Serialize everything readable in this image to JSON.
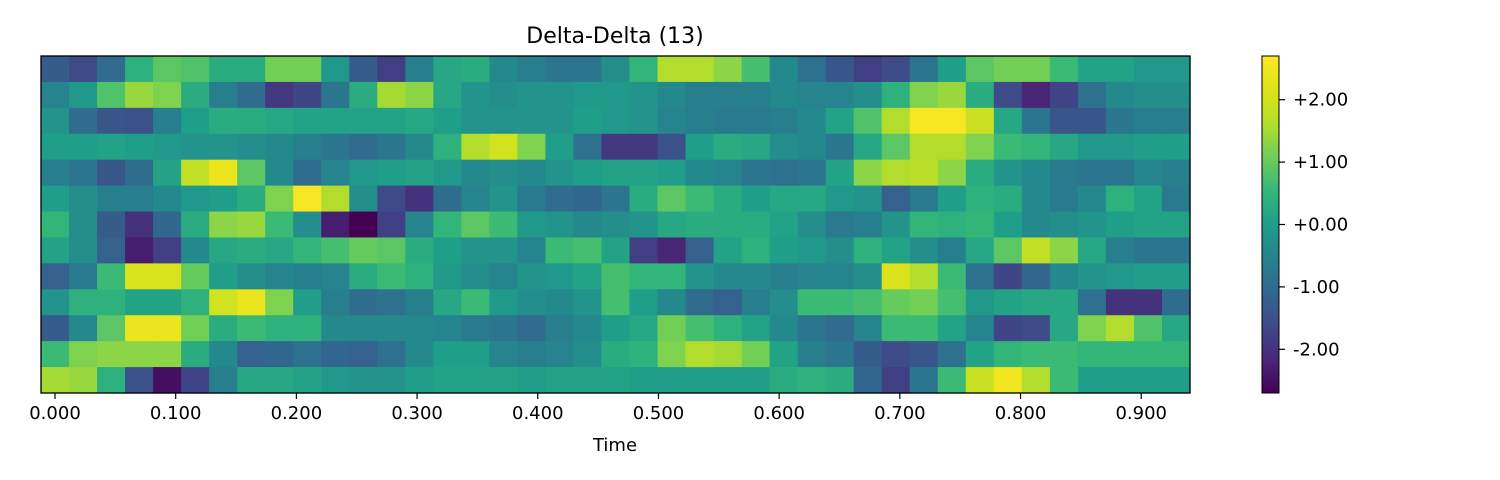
{
  "chart_data": {
    "type": "heatmap",
    "title": "Delta-Delta (13)",
    "xlabel": "Time",
    "ylabel": "",
    "colormap": "viridis",
    "xlim": [
      -0.0116,
      0.9404
    ],
    "x_frame_step": 0.02322,
    "x_ticks": [
      0.0,
      0.1,
      0.2,
      0.3,
      0.4,
      0.5,
      0.6,
      0.7,
      0.8,
      0.9
    ],
    "x_tick_labels": [
      "0.000",
      "0.100",
      "0.200",
      "0.300",
      "0.400",
      "0.500",
      "0.600",
      "0.700",
      "0.800",
      "0.900"
    ],
    "y_ticks_shown": false,
    "color_range": [
      -2.7,
      2.7
    ],
    "colorbar_ticks": [
      2,
      1,
      0,
      -1,
      -2
    ],
    "colorbar_tick_labels": [
      "+2.00",
      "+1.00",
      "+0.00",
      "-1.00",
      "-2.00"
    ],
    "rows": 13,
    "columns": 41,
    "values_top_to_bottom": [
      [
        -1.3,
        -1.6,
        -1.0,
        0.4,
        0.9,
        0.8,
        0.3,
        0.3,
        1.1,
        1.1,
        -0.1,
        -1.3,
        -1.8,
        -0.6,
        0.2,
        0.3,
        -0.4,
        -0.6,
        -0.8,
        -0.8,
        -0.3,
        0.5,
        1.6,
        1.6,
        1.3,
        0.7,
        -0.4,
        -0.9,
        -1.4,
        -1.8,
        -1.6,
        -0.8,
        0.0,
        0.9,
        1.1,
        1.1,
        0.6,
        0.1,
        0.1,
        -0.1,
        -0.1
      ],
      [
        -0.5,
        -0.1,
        0.8,
        1.4,
        1.2,
        0.3,
        -0.6,
        -1.0,
        -1.9,
        -1.7,
        -0.8,
        0.3,
        1.5,
        1.3,
        0.2,
        -0.2,
        -0.3,
        -0.2,
        -0.2,
        -0.1,
        -0.1,
        -0.2,
        -0.4,
        -0.6,
        -0.6,
        -0.6,
        -0.4,
        -0.5,
        -0.5,
        -0.3,
        0.4,
        1.2,
        1.4,
        0.3,
        -1.6,
        -2.2,
        -1.7,
        -0.9,
        -0.4,
        -0.3,
        -0.3
      ],
      [
        -0.2,
        -1.0,
        -1.4,
        -1.5,
        -0.6,
        0.0,
        0.3,
        0.3,
        0.2,
        0.1,
        0.1,
        0.1,
        0.1,
        0.2,
        0.0,
        -0.2,
        -0.2,
        -0.2,
        -0.2,
        0.0,
        -0.1,
        -0.2,
        -0.5,
        -0.6,
        -0.7,
        -0.7,
        -0.6,
        -0.4,
        0.1,
        0.8,
        1.6,
        2.6,
        2.6,
        1.9,
        0.2,
        -0.8,
        -1.4,
        -1.4,
        -0.8,
        -0.6,
        -0.6
      ],
      [
        0.0,
        0.0,
        0.1,
        0.0,
        -0.1,
        -0.2,
        -0.2,
        -0.3,
        -0.4,
        -0.6,
        -0.8,
        -1.0,
        -0.8,
        -0.4,
        0.4,
        1.6,
        2.0,
        1.2,
        0.0,
        -0.9,
        -1.9,
        -1.9,
        -1.5,
        0.0,
        0.3,
        0.2,
        -0.3,
        -0.4,
        -0.8,
        0.2,
        0.9,
        1.6,
        1.6,
        1.2,
        0.6,
        0.5,
        0.2,
        -0.1,
        -0.1,
        0.0,
        0.0
      ],
      [
        -0.6,
        -0.8,
        -1.4,
        -1.0,
        0.1,
        1.8,
        2.4,
        0.9,
        -0.4,
        -1.0,
        -0.5,
        -0.1,
        0.0,
        0.1,
        -0.1,
        -0.4,
        -0.3,
        -0.4,
        -0.2,
        0.0,
        0.1,
        0.1,
        0.0,
        -0.4,
        -0.5,
        -0.8,
        -0.9,
        -0.8,
        0.1,
        1.3,
        1.6,
        1.7,
        1.3,
        0.3,
        -0.2,
        -0.4,
        -0.7,
        -0.8,
        -0.8,
        -0.5,
        -0.6
      ],
      [
        0.0,
        -0.3,
        -0.6,
        -0.6,
        -0.4,
        -0.1,
        0.0,
        0.3,
        1.2,
        2.6,
        1.6,
        -0.3,
        -1.6,
        -2.0,
        -1.0,
        -0.5,
        -0.2,
        -0.7,
        -1.0,
        -1.1,
        -0.8,
        0.3,
        0.9,
        0.6,
        0.3,
        0.0,
        0.2,
        0.2,
        -0.1,
        -0.2,
        -1.2,
        -0.7,
        0.0,
        0.4,
        0.3,
        -0.4,
        -0.7,
        -0.4,
        0.4,
        0.1,
        -0.7
      ],
      [
        0.5,
        -0.3,
        -1.3,
        -2.0,
        -1.1,
        0.3,
        1.3,
        1.4,
        0.6,
        -0.3,
        -2.3,
        -2.7,
        -1.8,
        -0.5,
        0.5,
        0.9,
        0.6,
        -0.1,
        -0.2,
        -0.4,
        -0.3,
        -0.2,
        0.2,
        0.3,
        0.3,
        0.3,
        0.1,
        -0.3,
        -0.7,
        -0.6,
        -0.2,
        0.5,
        0.4,
        0.5,
        0.0,
        -0.4,
        -0.3,
        -0.2,
        0.0,
        0.1,
        0.1
      ],
      [
        0.1,
        -0.3,
        -1.2,
        -2.3,
        -1.8,
        -0.4,
        0.2,
        0.3,
        0.2,
        0.5,
        0.7,
        1.0,
        0.9,
        0.3,
        0.0,
        -0.2,
        -0.2,
        -0.5,
        0.6,
        0.7,
        0.1,
        -1.8,
        -2.2,
        -1.2,
        0.1,
        0.4,
        0.0,
        -0.1,
        -0.3,
        0.4,
        0.1,
        -0.3,
        -0.6,
        0.2,
        0.9,
        1.8,
        1.3,
        0.2,
        -0.6,
        -0.8,
        -0.8
      ],
      [
        -1.2,
        -0.7,
        0.6,
        2.1,
        2.1,
        1.0,
        0.0,
        -0.3,
        -0.5,
        -0.6,
        -0.5,
        0.3,
        0.6,
        0.4,
        -0.1,
        -0.3,
        -0.5,
        -0.2,
        -0.1,
        0.1,
        0.7,
        0.5,
        0.5,
        -0.2,
        -0.4,
        -0.4,
        -0.6,
        -0.5,
        -0.5,
        -0.3,
        2.1,
        1.6,
        0.6,
        -0.9,
        -1.7,
        -1.1,
        -0.4,
        -0.2,
        -0.1,
        0.0,
        0.0
      ],
      [
        -0.2,
        0.4,
        0.4,
        0.1,
        0.1,
        0.4,
        2.0,
        2.4,
        1.2,
        0.0,
        -0.6,
        -1.0,
        -0.9,
        -0.6,
        0.2,
        0.6,
        -0.1,
        -0.3,
        -0.4,
        -0.2,
        0.7,
        0.0,
        -0.4,
        -1.0,
        -1.2,
        -0.6,
        -0.3,
        0.6,
        0.6,
        0.7,
        1.0,
        1.1,
        0.7,
        -0.1,
        0.1,
        0.2,
        0.2,
        -0.9,
        -2.0,
        -2.0,
        -1.0
      ],
      [
        -1.3,
        -0.4,
        0.9,
        2.4,
        2.4,
        1.1,
        0.3,
        0.6,
        0.4,
        0.4,
        -0.4,
        -0.4,
        -0.4,
        -0.4,
        -0.5,
        -0.7,
        -0.8,
        -1.0,
        -0.6,
        -0.4,
        0.0,
        0.2,
        1.1,
        0.7,
        0.4,
        0.1,
        -0.4,
        -0.8,
        -1.0,
        -0.5,
        0.6,
        0.6,
        0.1,
        -0.5,
        -1.7,
        -1.6,
        0.2,
        1.2,
        1.6,
        0.8,
        0.2
      ],
      [
        0.6,
        1.2,
        1.3,
        1.3,
        1.3,
        0.3,
        -0.4,
        -1.2,
        -1.1,
        -0.9,
        -1.1,
        -1.2,
        -0.9,
        -0.4,
        0.0,
        0.0,
        -0.5,
        -0.6,
        -0.5,
        -0.3,
        0.3,
        0.4,
        1.2,
        1.6,
        1.5,
        1.1,
        0.1,
        -0.6,
        -0.8,
        -1.3,
        -1.6,
        -1.4,
        -0.9,
        0.1,
        0.5,
        0.6,
        0.6,
        0.5,
        0.5,
        0.5,
        0.5
      ],
      [
        1.5,
        1.4,
        0.4,
        -1.5,
        -2.5,
        -1.7,
        -0.6,
        0.2,
        0.2,
        0.1,
        -0.1,
        -0.2,
        -0.2,
        0.0,
        0.1,
        0.1,
        0.1,
        0.0,
        0.1,
        0.1,
        0.1,
        0.0,
        0.0,
        0.0,
        0.0,
        0.0,
        0.3,
        0.4,
        0.3,
        -1.1,
        -1.8,
        -0.8,
        0.6,
        1.9,
        2.5,
        1.6,
        0.6,
        0.0,
        0.0,
        0.0,
        0.0
      ]
    ]
  }
}
